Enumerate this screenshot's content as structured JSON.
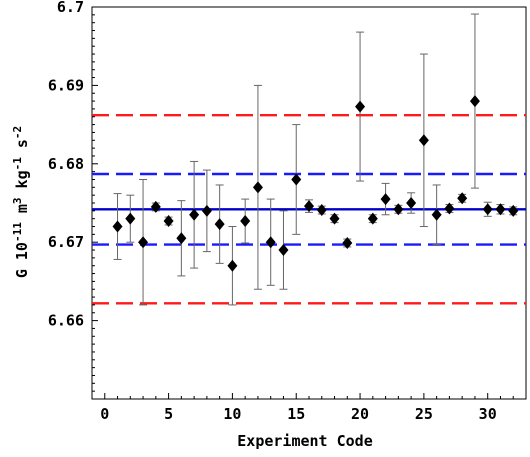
{
  "chart_data": {
    "type": "scatter",
    "title": "",
    "xlabel": "Experiment Code",
    "ylabel_parts": {
      "prefix": "G 10",
      "exp1": "-11",
      "mid1": " m",
      "exp2": "3",
      "mid2": " kg",
      "exp3": "-1",
      "mid3": " s",
      "exp4": "-2"
    },
    "xlim": [
      -1,
      33
    ],
    "ylim": [
      6.65,
      6.7
    ],
    "x_ticks": [
      0,
      5,
      10,
      15,
      20,
      25,
      30
    ],
    "x_tick_labels": [
      "0",
      "5",
      "10",
      "15",
      "20",
      "25",
      "30"
    ],
    "y_ticks": [
      6.66,
      6.67,
      6.68,
      6.69,
      6.7
    ],
    "y_tick_labels": [
      "6.66",
      "6.67",
      "6.68",
      "6.69",
      "6.7"
    ],
    "grid": false,
    "marker": "diamond",
    "colors": {
      "points": "#000000",
      "error_bars": "#666666",
      "mean_line": "#0000cc",
      "inner_band": "#1a1aff",
      "outer_band": "#ff1a1a"
    },
    "reference_lines": [
      {
        "y": 6.6742,
        "style": "solid",
        "color": "#0000cc"
      },
      {
        "y": 6.6787,
        "style": "dashed",
        "color": "#1a1aff"
      },
      {
        "y": 6.6697,
        "style": "dashed",
        "color": "#1a1aff"
      },
      {
        "y": 6.6862,
        "style": "dashed",
        "color": "#ff1a1a"
      },
      {
        "y": 6.6622,
        "style": "dashed",
        "color": "#ff1a1a"
      }
    ],
    "series": [
      {
        "points": [
          {
            "x": 1,
            "y": 6.672,
            "err": 0.0042
          },
          {
            "x": 2,
            "y": 6.673,
            "err": 0.003
          },
          {
            "x": 3,
            "y": 6.67,
            "err": 0.008
          },
          {
            "x": 4,
            "y": 6.6745,
            "err": 0.0005
          },
          {
            "x": 5,
            "y": 6.6727,
            "err": 0.0005
          },
          {
            "x": 6,
            "y": 6.6705,
            "err": 0.0048
          },
          {
            "x": 7,
            "y": 6.6735,
            "err": 0.0068
          },
          {
            "x": 8,
            "y": 6.674,
            "err": 0.0052
          },
          {
            "x": 9,
            "y": 6.6723,
            "err": 0.005
          },
          {
            "x": 10,
            "y": 6.667,
            "err": 0.005
          },
          {
            "x": 11,
            "y": 6.6727,
            "err": 0.0028
          },
          {
            "x": 12,
            "y": 6.677,
            "err": 0.013
          },
          {
            "x": 13,
            "y": 6.67,
            "err": 0.0055
          },
          {
            "x": 14,
            "y": 6.669,
            "err": 0.005
          },
          {
            "x": 15,
            "y": 6.678,
            "err": 0.007
          },
          {
            "x": 16,
            "y": 6.6746,
            "err": 0.0008
          },
          {
            "x": 17,
            "y": 6.6741,
            "err": 0.0005
          },
          {
            "x": 18,
            "y": 6.673,
            "err": 0.0005
          },
          {
            "x": 19,
            "y": 6.6699,
            "err": 0.0005
          },
          {
            "x": 20,
            "y": 6.6873,
            "err": 0.0095
          },
          {
            "x": 21,
            "y": 6.673,
            "err": 0.0005
          },
          {
            "x": 22,
            "y": 6.6755,
            "err": 0.002
          },
          {
            "x": 23,
            "y": 6.6742,
            "err": 0.0005
          },
          {
            "x": 24,
            "y": 6.675,
            "err": 0.0013
          },
          {
            "x": 25,
            "y": 6.683,
            "err": 0.011
          },
          {
            "x": 26,
            "y": 6.6735,
            "err": 0.0038
          },
          {
            "x": 27,
            "y": 6.6743,
            "err": 0.0005
          },
          {
            "x": 28,
            "y": 6.6756,
            "err": 0.0005
          },
          {
            "x": 29,
            "y": 6.688,
            "err": 0.0111
          },
          {
            "x": 30,
            "y": 6.6742,
            "err": 0.0009
          },
          {
            "x": 31,
            "y": 6.6742,
            "err": 0.0006
          },
          {
            "x": 32,
            "y": 6.674,
            "err": 0.0005
          }
        ]
      }
    ]
  }
}
